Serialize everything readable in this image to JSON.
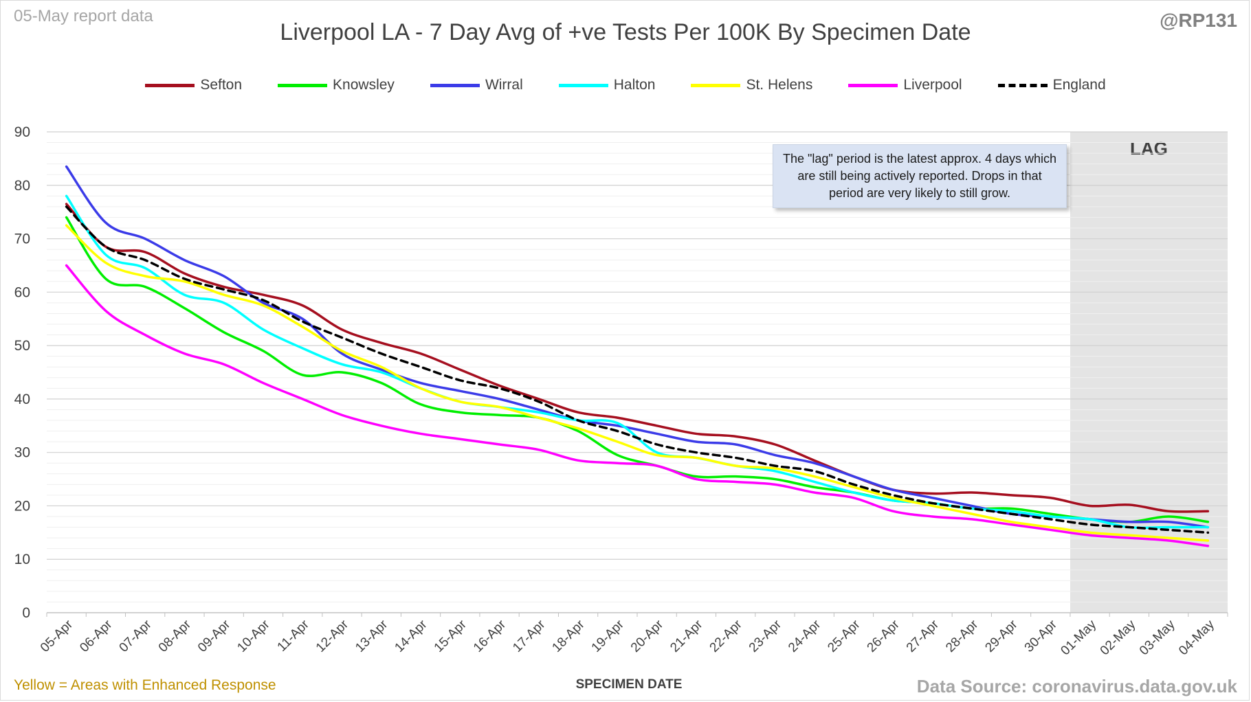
{
  "header": {
    "report_label": "05-May report data",
    "handle": "@RP131",
    "title": "Liverpool LA - 7 Day Avg of +ve Tests Per 100K By Specimen Date"
  },
  "footer": {
    "note": "Yellow = Areas with Enhanced Response",
    "xlabel": "SPECIMEN DATE",
    "source": "Data Source: coronavirus.data.gov.uk"
  },
  "annotations": {
    "lag_box": "The \"lag\" period is the latest approx. 4 days which are still being actively reported. Drops in that period are very likely to still grow.",
    "lag_label": "LAG"
  },
  "chart_data": {
    "type": "line",
    "title": "Liverpool LA - 7 Day Avg of +ve Tests Per 100K By Specimen Date",
    "xlabel": "SPECIMEN DATE",
    "ylabel": "",
    "ylim": [
      0,
      90
    ],
    "yticks": [
      0,
      10,
      20,
      30,
      40,
      50,
      60,
      70,
      80,
      90
    ],
    "grid": true,
    "legend_position": "top",
    "x": [
      "05-Apr",
      "06-Apr",
      "07-Apr",
      "08-Apr",
      "09-Apr",
      "10-Apr",
      "11-Apr",
      "12-Apr",
      "13-Apr",
      "14-Apr",
      "15-Apr",
      "16-Apr",
      "17-Apr",
      "18-Apr",
      "19-Apr",
      "20-Apr",
      "21-Apr",
      "22-Apr",
      "23-Apr",
      "24-Apr",
      "25-Apr",
      "26-Apr",
      "27-Apr",
      "28-Apr",
      "29-Apr",
      "30-Apr",
      "01-May",
      "02-May",
      "03-May",
      "04-May"
    ],
    "lag_period": [
      "01-May",
      "04-May"
    ],
    "series": [
      {
        "name": "Sefton",
        "color": "#a50f1f",
        "dashed": false,
        "values": [
          76.5,
          68.5,
          67.5,
          63.5,
          61,
          59.5,
          57.5,
          53,
          50.5,
          48.5,
          45.5,
          42.5,
          40,
          37.5,
          36.5,
          35,
          33.5,
          33,
          31.5,
          28.5,
          25.5,
          23,
          22.3,
          22.5,
          22,
          21.5,
          20,
          20.2,
          19,
          19
        ]
      },
      {
        "name": "Knowsley",
        "color": "#00ee00",
        "dashed": false,
        "values": [
          74,
          62.5,
          61,
          57,
          52.5,
          49,
          44.5,
          45,
          43,
          39,
          37.5,
          37,
          36.5,
          34,
          29.5,
          27.5,
          25.5,
          25.5,
          25,
          23.5,
          22.5,
          21,
          20.5,
          19.5,
          19.5,
          18.5,
          17.5,
          17,
          18,
          17
        ]
      },
      {
        "name": "Wirral",
        "color": "#3b3be8",
        "dashed": false,
        "values": [
          83.5,
          73,
          70,
          66,
          63,
          58,
          55,
          48.5,
          45.5,
          43,
          41.5,
          40,
          38,
          36,
          35,
          33.5,
          32,
          31.5,
          29.5,
          28,
          25.5,
          23,
          21.5,
          20,
          18.5,
          18,
          17.5,
          17,
          17,
          16
        ]
      },
      {
        "name": "Halton",
        "color": "#00ffff",
        "dashed": false,
        "values": [
          78,
          67,
          64.5,
          59.5,
          58,
          53,
          49.5,
          46.5,
          45,
          42,
          39.5,
          38.5,
          37.5,
          36,
          35.5,
          30,
          29,
          27.5,
          26.5,
          24.5,
          22.5,
          21,
          20.5,
          19.5,
          19,
          18,
          17.5,
          16,
          16,
          16
        ]
      },
      {
        "name": "St. Helens",
        "color": "#ffff00",
        "dashed": false,
        "values": [
          72.5,
          65.5,
          63,
          62,
          59.5,
          57.5,
          53.5,
          49,
          46,
          42,
          39.5,
          38.5,
          36.5,
          34.5,
          32,
          29.5,
          29,
          27.5,
          27,
          25.5,
          23.5,
          21.5,
          20,
          18.5,
          17,
          16,
          15,
          14.5,
          14,
          13.5
        ]
      },
      {
        "name": "Liverpool",
        "color": "#ff00ff",
        "dashed": false,
        "values": [
          65,
          56.5,
          52,
          48.5,
          46.5,
          43,
          40,
          37,
          35,
          33.5,
          32.5,
          31.5,
          30.5,
          28.5,
          28,
          27.5,
          25,
          24.5,
          24,
          22.5,
          21.5,
          19,
          18,
          17.5,
          16.5,
          15.5,
          14.5,
          14,
          13.5,
          12.5
        ]
      },
      {
        "name": "England",
        "color": "#000000",
        "dashed": true,
        "values": [
          76,
          68.5,
          66,
          62.5,
          60.5,
          58.5,
          54.5,
          51.5,
          48.5,
          46,
          43.5,
          42,
          39.5,
          36,
          34,
          31.5,
          30,
          29,
          27.5,
          26.5,
          24,
          22,
          20.5,
          19.5,
          18.5,
          17.5,
          16.5,
          16,
          15.5,
          15
        ]
      }
    ]
  }
}
